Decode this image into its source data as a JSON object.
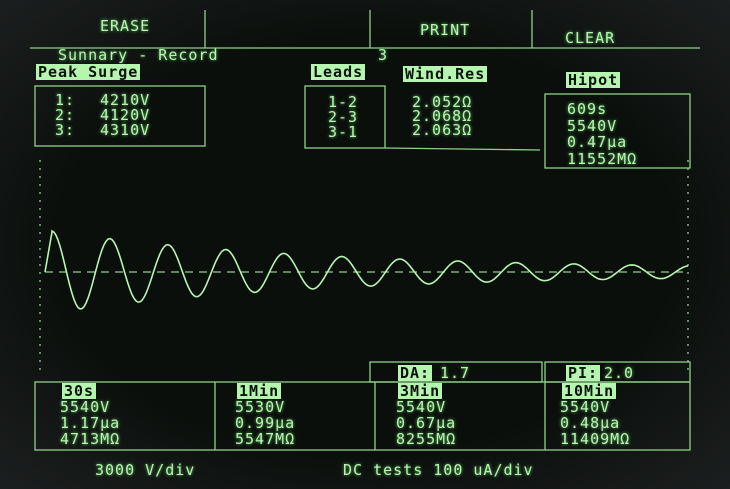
{
  "buttons": [
    "ERASE",
    "PRINT",
    "CLEAR"
  ],
  "summary": {
    "title": "Sunnary - Record",
    "record": "3"
  },
  "headers": {
    "peak_surge": "Peak Surge",
    "leads": "Leads",
    "wind_res": "Wind.Res",
    "hipot": "Hipot"
  },
  "peak_surge": [
    [
      "1:",
      "4210V"
    ],
    [
      "2:",
      "4120V"
    ],
    [
      "3:",
      "4310V"
    ]
  ],
  "leads": [
    "1-2",
    "2-3",
    "3-1"
  ],
  "wind_res": [
    "2.052Ω",
    "2.068Ω",
    "2.063Ω"
  ],
  "hipot": [
    "609s",
    "5540V",
    "0.47µa",
    "11552MΩ"
  ],
  "da": {
    "label": "DA:",
    "value": "1.7"
  },
  "pi": {
    "label": "PI:",
    "value": "2.0"
  },
  "dc_tests": [
    {
      "time": "30s",
      "voltage": "5540V",
      "current": "1.17µa",
      "resistance": "4713MΩ"
    },
    {
      "time": "1Min",
      "voltage": "5530V",
      "current": "0.99µa",
      "resistance": "5547MΩ"
    },
    {
      "time": "3Min",
      "voltage": "5540V",
      "current": "0.67µa",
      "resistance": "8255MΩ"
    },
    {
      "time": "10Min",
      "voltage": "5540V",
      "current": "0.48µa",
      "resistance": "11409MΩ"
    }
  ],
  "footer": {
    "volts_per_div": "3000 V/div",
    "dc_scale": "DC tests 100 uA/div"
  }
}
